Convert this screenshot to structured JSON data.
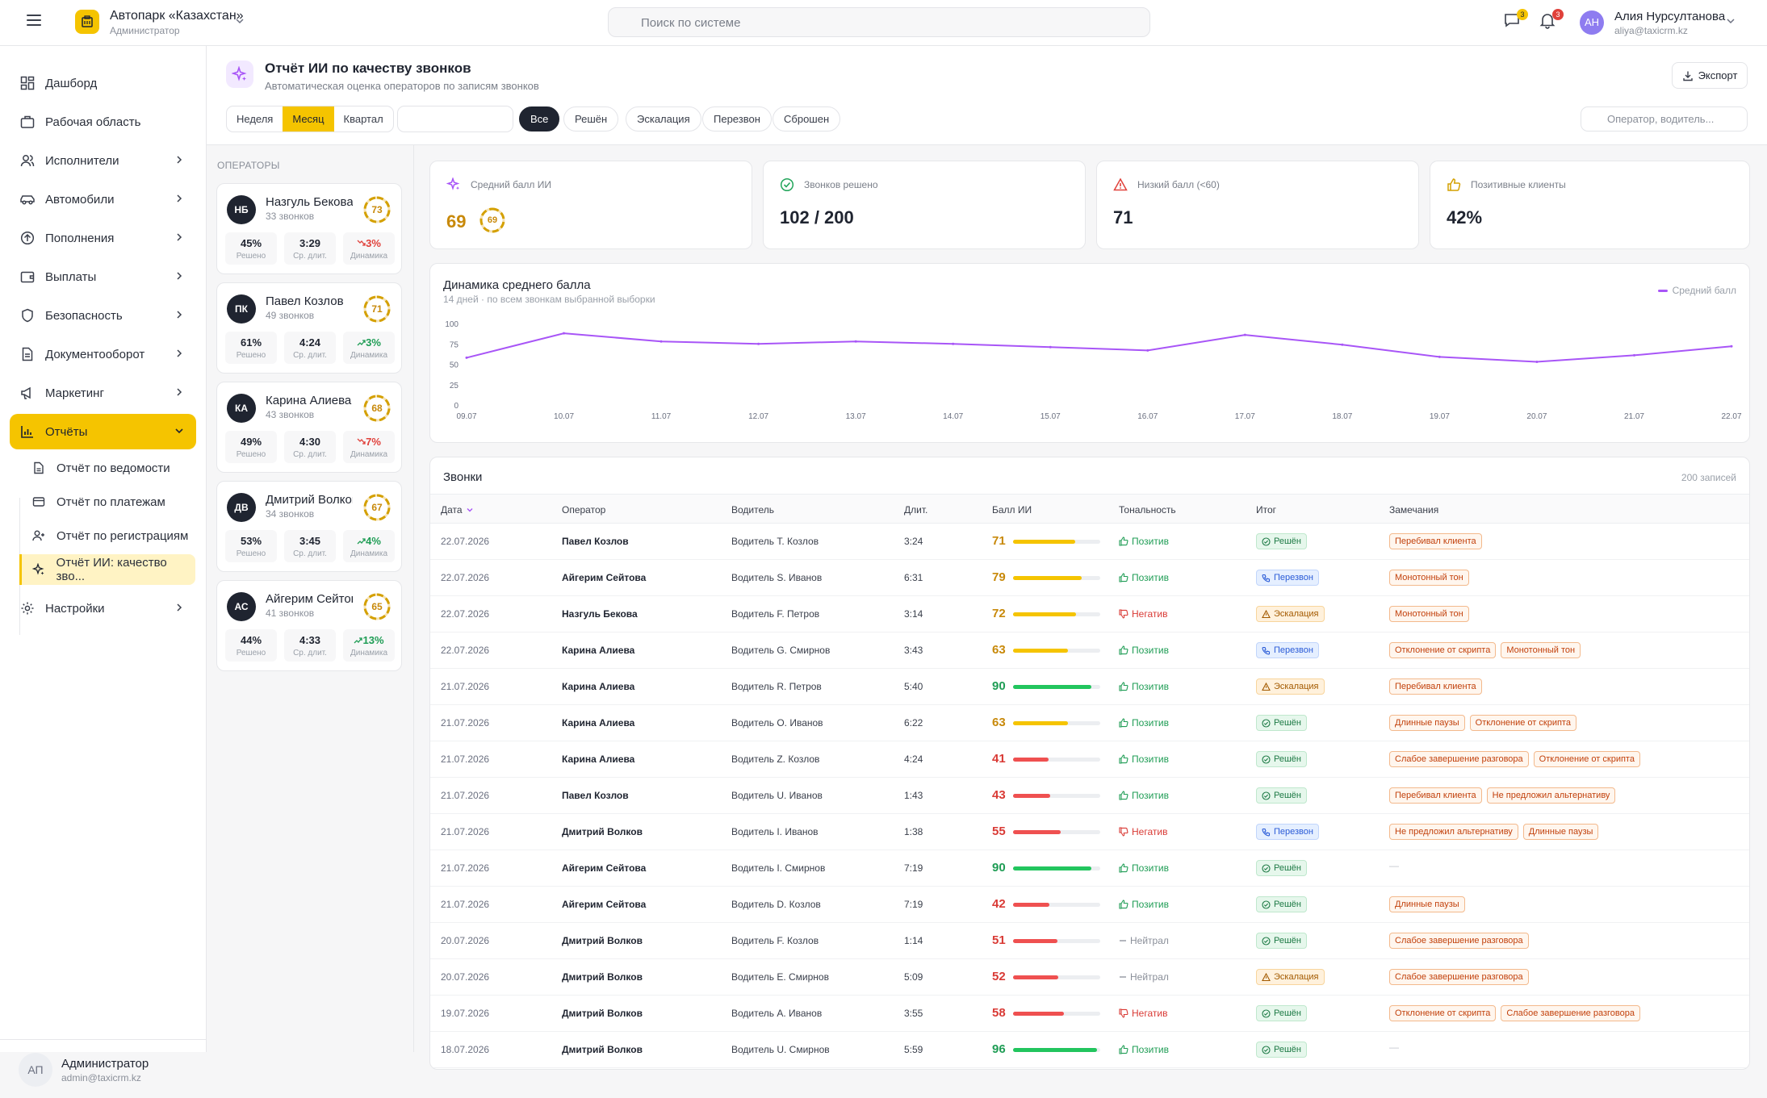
{
  "topbar": {
    "company": "Автопарк «Казахстан»",
    "role": "Администратор",
    "search_placeholder": "Поиск по системе",
    "messages_badge": "3",
    "notifications_badge": "3",
    "user_initials": "АН",
    "user_name": "Алия Нурсултанова",
    "user_email": "aliya@taxicrm.kz"
  },
  "sidebar": {
    "items": [
      {
        "label": "Дашборд",
        "icon": "dashboard-icon"
      },
      {
        "label": "Рабочая область",
        "icon": "briefcase-icon"
      },
      {
        "label": "Исполнители",
        "icon": "users-icon"
      },
      {
        "label": "Автомобили",
        "icon": "car-icon"
      },
      {
        "label": "Пополнения",
        "icon": "arrow-up-circle-icon"
      },
      {
        "label": "Выплаты",
        "icon": "wallet-icon"
      },
      {
        "label": "Безопасность",
        "icon": "shield-icon"
      },
      {
        "label": "Документооборот",
        "icon": "document-icon"
      },
      {
        "label": "Маркетинг",
        "icon": "megaphone-icon"
      },
      {
        "label": "Отчёты",
        "icon": "bar-chart-icon"
      },
      {
        "label": "Настройки",
        "icon": "gear-icon"
      }
    ],
    "sub_items": [
      {
        "label": "Отчёт по ведомости",
        "icon": "file-icon"
      },
      {
        "label": "Отчёт по платежам",
        "icon": "credit-card-icon"
      },
      {
        "label": "Отчёт по регистрациям",
        "icon": "user-plus-icon"
      },
      {
        "label": "Отчёт ИИ: качество зво...",
        "icon": "sparkle-icon"
      }
    ],
    "footer": {
      "initials": "АП",
      "name": "Администратор",
      "email": "admin@taxicrm.kz"
    }
  },
  "header": {
    "title": "Отчёт ИИ по качеству звонков",
    "subtitle": "Автоматическая оценка операторов по записям звонков",
    "export_label": "Экспорт",
    "periods": [
      "Неделя",
      "Месяц",
      "Квартал"
    ],
    "active_period": "Месяц",
    "date_value": "",
    "chips": [
      "Все",
      "Решён",
      "Эскалация",
      "Перезвон",
      "Сброшен"
    ],
    "active_chip": "Все",
    "filter_placeholder": "Оператор, водитель..."
  },
  "operators": {
    "title": "ОПЕРАТОРЫ",
    "stat_labels": {
      "resolved": "Решено",
      "avg": "Ср. длит.",
      "trend": "Динамика"
    },
    "list": [
      {
        "initials": "НБ",
        "name": "Назгуль Бекова",
        "calls": "33 звонков",
        "score": 73,
        "resolved": "45%",
        "avg": "3:29",
        "trend": "3%",
        "trend_dir": "down"
      },
      {
        "initials": "ПК",
        "name": "Павел Козлов",
        "calls": "49 звонков",
        "score": 71,
        "resolved": "61%",
        "avg": "4:24",
        "trend": "3%",
        "trend_dir": "up"
      },
      {
        "initials": "КА",
        "name": "Карина Алиева",
        "calls": "43 звонков",
        "score": 68,
        "resolved": "49%",
        "avg": "4:30",
        "trend": "7%",
        "trend_dir": "down"
      },
      {
        "initials": "ДВ",
        "name": "Дмитрий Волков",
        "calls": "34 звонков",
        "score": 67,
        "resolved": "53%",
        "avg": "3:45",
        "trend": "4%",
        "trend_dir": "up"
      },
      {
        "initials": "АС",
        "name": "Айгерим Сейтова",
        "calls": "41 звонков",
        "score": 65,
        "resolved": "44%",
        "avg": "4:33",
        "trend": "13%",
        "trend_dir": "up"
      }
    ]
  },
  "kpis": [
    {
      "label": "Средний балл ИИ",
      "value": "69",
      "ring": "69",
      "icon": "sparkle-icon",
      "color": "#a855f7"
    },
    {
      "label": "Звонков решено",
      "value": "102 / 200",
      "icon": "check-circle-icon",
      "color": "#22a55a"
    },
    {
      "label": "Низкий балл (<60)",
      "value": "71",
      "icon": "warning-icon",
      "color": "#e0413b"
    },
    {
      "label": "Позитивные клиенты",
      "value": "42%",
      "icon": "thumbs-up-icon",
      "color": "#d4a000"
    }
  ],
  "chart_data": {
    "type": "line",
    "title": "Динамика среднего балла",
    "subtitle": "14 дней · по всем звонкам выбранной выборки",
    "x": [
      "09.07",
      "10.07",
      "11.07",
      "12.07",
      "13.07",
      "14.07",
      "15.07",
      "16.07",
      "17.07",
      "18.07",
      "19.07",
      "20.07",
      "21.07",
      "22.07"
    ],
    "series": [
      {
        "name": "Средний балл",
        "values": [
          58,
          88,
          78,
          75,
          78,
          75,
          71,
          67,
          86,
          74,
          59,
          53,
          61,
          72
        ],
        "color": "#a855f7"
      }
    ],
    "yticks": [
      0,
      25,
      50,
      75,
      100
    ],
    "ylim": [
      0,
      100
    ],
    "grid": false,
    "legend": "top-right"
  },
  "calls": {
    "title": "Звонки",
    "count": "200 записей",
    "columns": [
      "Дата",
      "Оператор",
      "Водитель",
      "Длит.",
      "Балл ИИ",
      "Тональность",
      "Итог",
      "Замечания"
    ],
    "rows": [
      {
        "date": "22.07.2026",
        "operator": "Павел Козлов",
        "driver": "Водитель Т. Козлов",
        "dur": "3:24",
        "score": 71,
        "tone": "Позитив",
        "result": "Решён",
        "notes": [
          "Перебивал клиента"
        ]
      },
      {
        "date": "22.07.2026",
        "operator": "Айгерим Сейтова",
        "driver": "Водитель S. Иванов",
        "dur": "6:31",
        "score": 79,
        "tone": "Позитив",
        "result": "Перезвон",
        "notes": [
          "Монотонный тон"
        ]
      },
      {
        "date": "22.07.2026",
        "operator": "Назгуль Бекова",
        "driver": "Водитель F. Петров",
        "dur": "3:14",
        "score": 72,
        "tone": "Негатив",
        "result": "Эскалация",
        "notes": [
          "Монотонный тон"
        ]
      },
      {
        "date": "22.07.2026",
        "operator": "Карина Алиева",
        "driver": "Водитель G. Смирнов",
        "dur": "3:43",
        "score": 63,
        "tone": "Позитив",
        "result": "Перезвон",
        "notes": [
          "Отклонение от скрипта",
          "Монотонный тон"
        ]
      },
      {
        "date": "21.07.2026",
        "operator": "Карина Алиева",
        "driver": "Водитель R. Петров",
        "dur": "5:40",
        "score": 90,
        "tone": "Позитив",
        "result": "Эскалация",
        "notes": [
          "Перебивал клиента"
        ]
      },
      {
        "date": "21.07.2026",
        "operator": "Карина Алиева",
        "driver": "Водитель O. Иванов",
        "dur": "6:22",
        "score": 63,
        "tone": "Позитив",
        "result": "Решён",
        "notes": [
          "Длинные паузы",
          "Отклонение от скрипта"
        ]
      },
      {
        "date": "21.07.2026",
        "operator": "Карина Алиева",
        "driver": "Водитель Z. Козлов",
        "dur": "4:24",
        "score": 41,
        "tone": "Позитив",
        "result": "Решён",
        "notes": [
          "Слабое завершение разговора",
          "Отклонение от скрипта"
        ]
      },
      {
        "date": "21.07.2026",
        "operator": "Павел Козлов",
        "driver": "Водитель U. Иванов",
        "dur": "1:43",
        "score": 43,
        "tone": "Позитив",
        "result": "Решён",
        "notes": [
          "Перебивал клиента",
          "Не предложил альтернативу"
        ]
      },
      {
        "date": "21.07.2026",
        "operator": "Дмитрий Волков",
        "driver": "Водитель I. Иванов",
        "dur": "1:38",
        "score": 55,
        "tone": "Негатив",
        "result": "Перезвон",
        "notes": [
          "Не предложил альтернативу",
          "Длинные паузы"
        ]
      },
      {
        "date": "21.07.2026",
        "operator": "Айгерим Сейтова",
        "driver": "Водитель I. Смирнов",
        "dur": "7:19",
        "score": 90,
        "tone": "Позитив",
        "result": "Решён",
        "notes": []
      },
      {
        "date": "21.07.2026",
        "operator": "Айгерим Сейтова",
        "driver": "Водитель D. Козлов",
        "dur": "7:19",
        "score": 42,
        "tone": "Позитив",
        "result": "Решён",
        "notes": [
          "Длинные паузы"
        ]
      },
      {
        "date": "20.07.2026",
        "operator": "Дмитрий Волков",
        "driver": "Водитель F. Козлов",
        "dur": "1:14",
        "score": 51,
        "tone": "Нейтрал",
        "result": "Решён",
        "notes": [
          "Слабое завершение разговора"
        ]
      },
      {
        "date": "20.07.2026",
        "operator": "Дмитрий Волков",
        "driver": "Водитель E. Смирнов",
        "dur": "5:09",
        "score": 52,
        "tone": "Нейтрал",
        "result": "Эскалация",
        "notes": [
          "Слабое завершение разговора"
        ]
      },
      {
        "date": "19.07.2026",
        "operator": "Дмитрий Волков",
        "driver": "Водитель A. Иванов",
        "dur": "3:55",
        "score": 58,
        "tone": "Негатив",
        "result": "Решён",
        "notes": [
          "Отклонение от скрипта",
          "Слабое завершение разговора"
        ]
      },
      {
        "date": "18.07.2026",
        "operator": "Дмитрий Волков",
        "driver": "Водитель U. Смирнов",
        "dur": "5:59",
        "score": 96,
        "tone": "Позитив",
        "result": "Решён",
        "notes": []
      }
    ],
    "empty_note": "—"
  },
  "colors": {
    "accent": "#f5c400",
    "purple": "#a855f7",
    "green": "#22c55e",
    "yellow": "#f5c400",
    "red": "#ef5050"
  }
}
